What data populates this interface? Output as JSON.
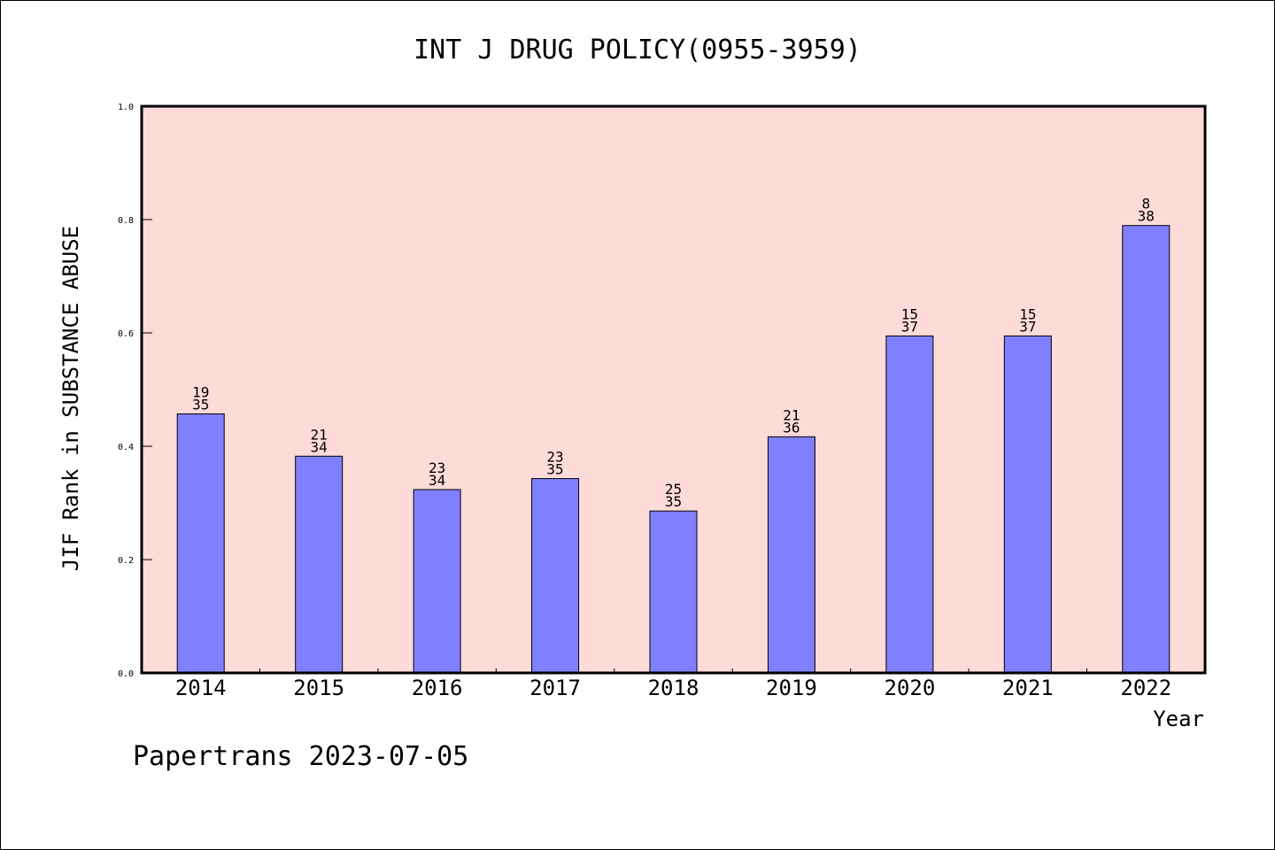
{
  "chart_data": {
    "type": "bar",
    "title": "INT J DRUG POLICY(0955-3959)",
    "xlabel": "Year",
    "ylabel": "JIF Rank in SUBSTANCE ABUSE",
    "ylim": [
      0,
      1.0
    ],
    "yticks": [
      "0.0",
      "0.2",
      "0.4",
      "0.6",
      "0.8",
      "1.0"
    ],
    "ytick_values": [
      0,
      0.2,
      0.4,
      0.6,
      0.8,
      1.0
    ],
    "categories": [
      "2014",
      "2015",
      "2016",
      "2017",
      "2018",
      "2019",
      "2020",
      "2021",
      "2022"
    ],
    "values": [
      0.4571,
      0.3824,
      0.3235,
      0.3429,
      0.2857,
      0.4167,
      0.5946,
      0.5946,
      0.7895
    ],
    "rank": [
      "19",
      "21",
      "23",
      "23",
      "25",
      "21",
      "15",
      "15",
      "8"
    ],
    "total": [
      "35",
      "34",
      "34",
      "35",
      "35",
      "36",
      "37",
      "37",
      "38"
    ],
    "grid": false,
    "colors": {
      "plot_background": "#fddbd8",
      "bar_fill": "#8080ff",
      "bar_stroke": "#000000",
      "axis": "#000000"
    }
  },
  "footer": {
    "text": "Papertrans 2023-07-05"
  }
}
